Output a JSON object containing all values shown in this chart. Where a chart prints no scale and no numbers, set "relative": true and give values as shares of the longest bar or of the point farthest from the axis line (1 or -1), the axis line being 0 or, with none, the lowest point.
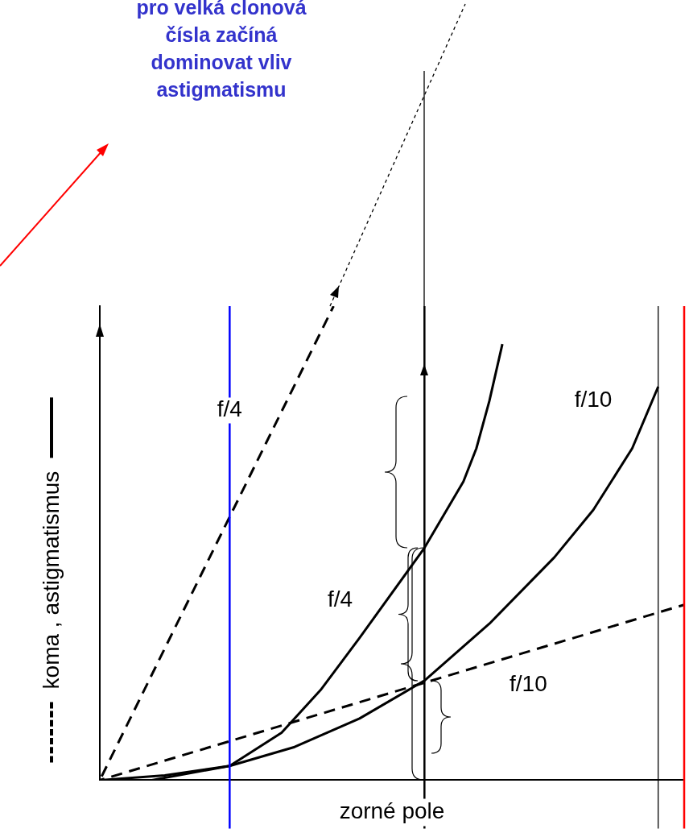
{
  "chart_data": {
    "type": "line",
    "relative": true,
    "xlabel": "zorné pole",
    "ylabel": "koma , astigmatismus",
    "annotations": [
      "pro velká clonová čísla začíná dominovat vliv astigmatismu"
    ],
    "categories": [
      null,
      null,
      null,
      null,
      null,
      null,
      null,
      null,
      null,
      null,
      null,
      null,
      null,
      null,
      null,
      null,
      null,
      null,
      null,
      null,
      null,
      null,
      null,
      null,
      null,
      null,
      null,
      null,
      null,
      null,
      null,
      null,
      null,
      null,
      null,
      null,
      null,
      null,
      null,
      null,
      null,
      null,
      null,
      null,
      null,
      null
    ],
    "marker": "none",
    "grid": false,
    "legend": false,
    "series": [
      {
        "name": "f/4",
        "color": "#000000",
        "line_style": "solid",
        "values": [
          0,
          null,
          null,
          null,
          0,
          null,
          null,
          null,
          0.02,
          null,
          0.03,
          null,
          null,
          null,
          0.1,
          null,
          null,
          0.19,
          null,
          null,
          0.3,
          null,
          null,
          null,
          null,
          0.49,
          null,
          null,
          0.63,
          0.7,
          0.8,
          0.92,
          null,
          null,
          null,
          null,
          null,
          null,
          null,
          null,
          null,
          null,
          null,
          null,
          null,
          null
        ]
      },
      {
        "name": "f/10",
        "color": "#000000",
        "line_style": "solid",
        "values": [
          0,
          null,
          null,
          null,
          null,
          0.01,
          null,
          null,
          null,
          null,
          0.03,
          null,
          null,
          null,
          null,
          0.07,
          null,
          null,
          null,
          null,
          0.13,
          null,
          null,
          null,
          null,
          0.21,
          null,
          null,
          null,
          null,
          0.33,
          null,
          null,
          null,
          null,
          0.47,
          null,
          null,
          0.57,
          null,
          null,
          0.7,
          null,
          0.83,
          null,
          null
        ]
      },
      {
        "name": "f/4",
        "color": "#000000",
        "line_style": "dashed",
        "values": [
          0,
          null,
          null,
          null,
          null,
          null,
          null,
          null,
          null,
          null,
          null,
          null,
          null,
          null,
          null,
          null,
          null,
          null,
          1,
          null,
          null,
          null,
          null,
          null,
          null,
          null,
          null,
          null,
          null,
          null,
          null,
          null,
          null,
          null,
          null,
          null,
          null,
          null,
          null,
          null,
          null,
          null,
          null,
          null,
          null,
          null
        ]
      },
      {
        "name": "f/10",
        "color": "#000000",
        "line_style": "dashed",
        "values": [
          0,
          null,
          null,
          null,
          null,
          null,
          null,
          null,
          null,
          null,
          null,
          null,
          null,
          null,
          null,
          null,
          null,
          null,
          null,
          null,
          null,
          null,
          null,
          null,
          null,
          null,
          null,
          null,
          null,
          null,
          null,
          null,
          null,
          null,
          null,
          null,
          null,
          null,
          null,
          null,
          null,
          null,
          null,
          null,
          null,
          0.37
        ]
      }
    ]
  }
}
